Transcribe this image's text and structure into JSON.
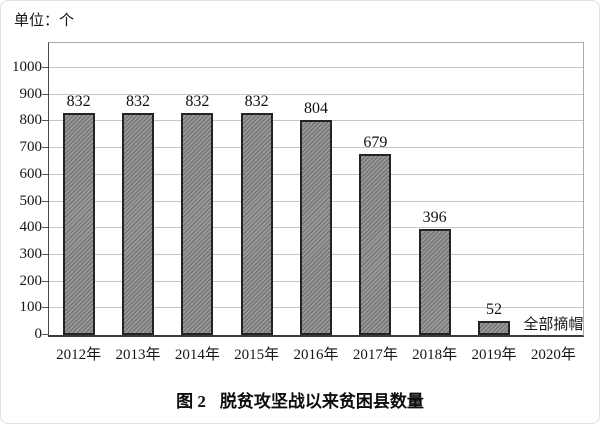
{
  "figure": {
    "unit_label": "单位：个",
    "caption": {
      "figure_label": "图 2",
      "title": "脱贫攻坚战以来贫困县数量"
    }
  },
  "colors": {
    "bar_fill": "#989898",
    "bar_hatch": "#6e6e6e",
    "bar_border": "#242424",
    "gridline": "#c6c6c6",
    "axis": "#3a3a3a",
    "text": "#111111"
  },
  "chart_data": {
    "type": "bar",
    "categories": [
      "2012年",
      "2013年",
      "2014年",
      "2015年",
      "2016年",
      "2017年",
      "2018年",
      "2019年",
      "2020年"
    ],
    "values": [
      832,
      832,
      832,
      832,
      804,
      679,
      396,
      52,
      null
    ],
    "title": "图 2 脱贫攻坚战以来贫困县数量",
    "xlabel": "",
    "ylabel": "单位：个",
    "ylim": [
      0,
      1000
    ],
    "ytick_interval": 100,
    "yticks": [
      0,
      100,
      200,
      300,
      400,
      500,
      600,
      700,
      800,
      900,
      1000
    ],
    "grid": true,
    "legend": false,
    "bar_style": "diagonal-hatch",
    "annotations": [
      {
        "text": "全部摘帽",
        "category": "2020年",
        "position": "slot-bottom"
      }
    ]
  }
}
